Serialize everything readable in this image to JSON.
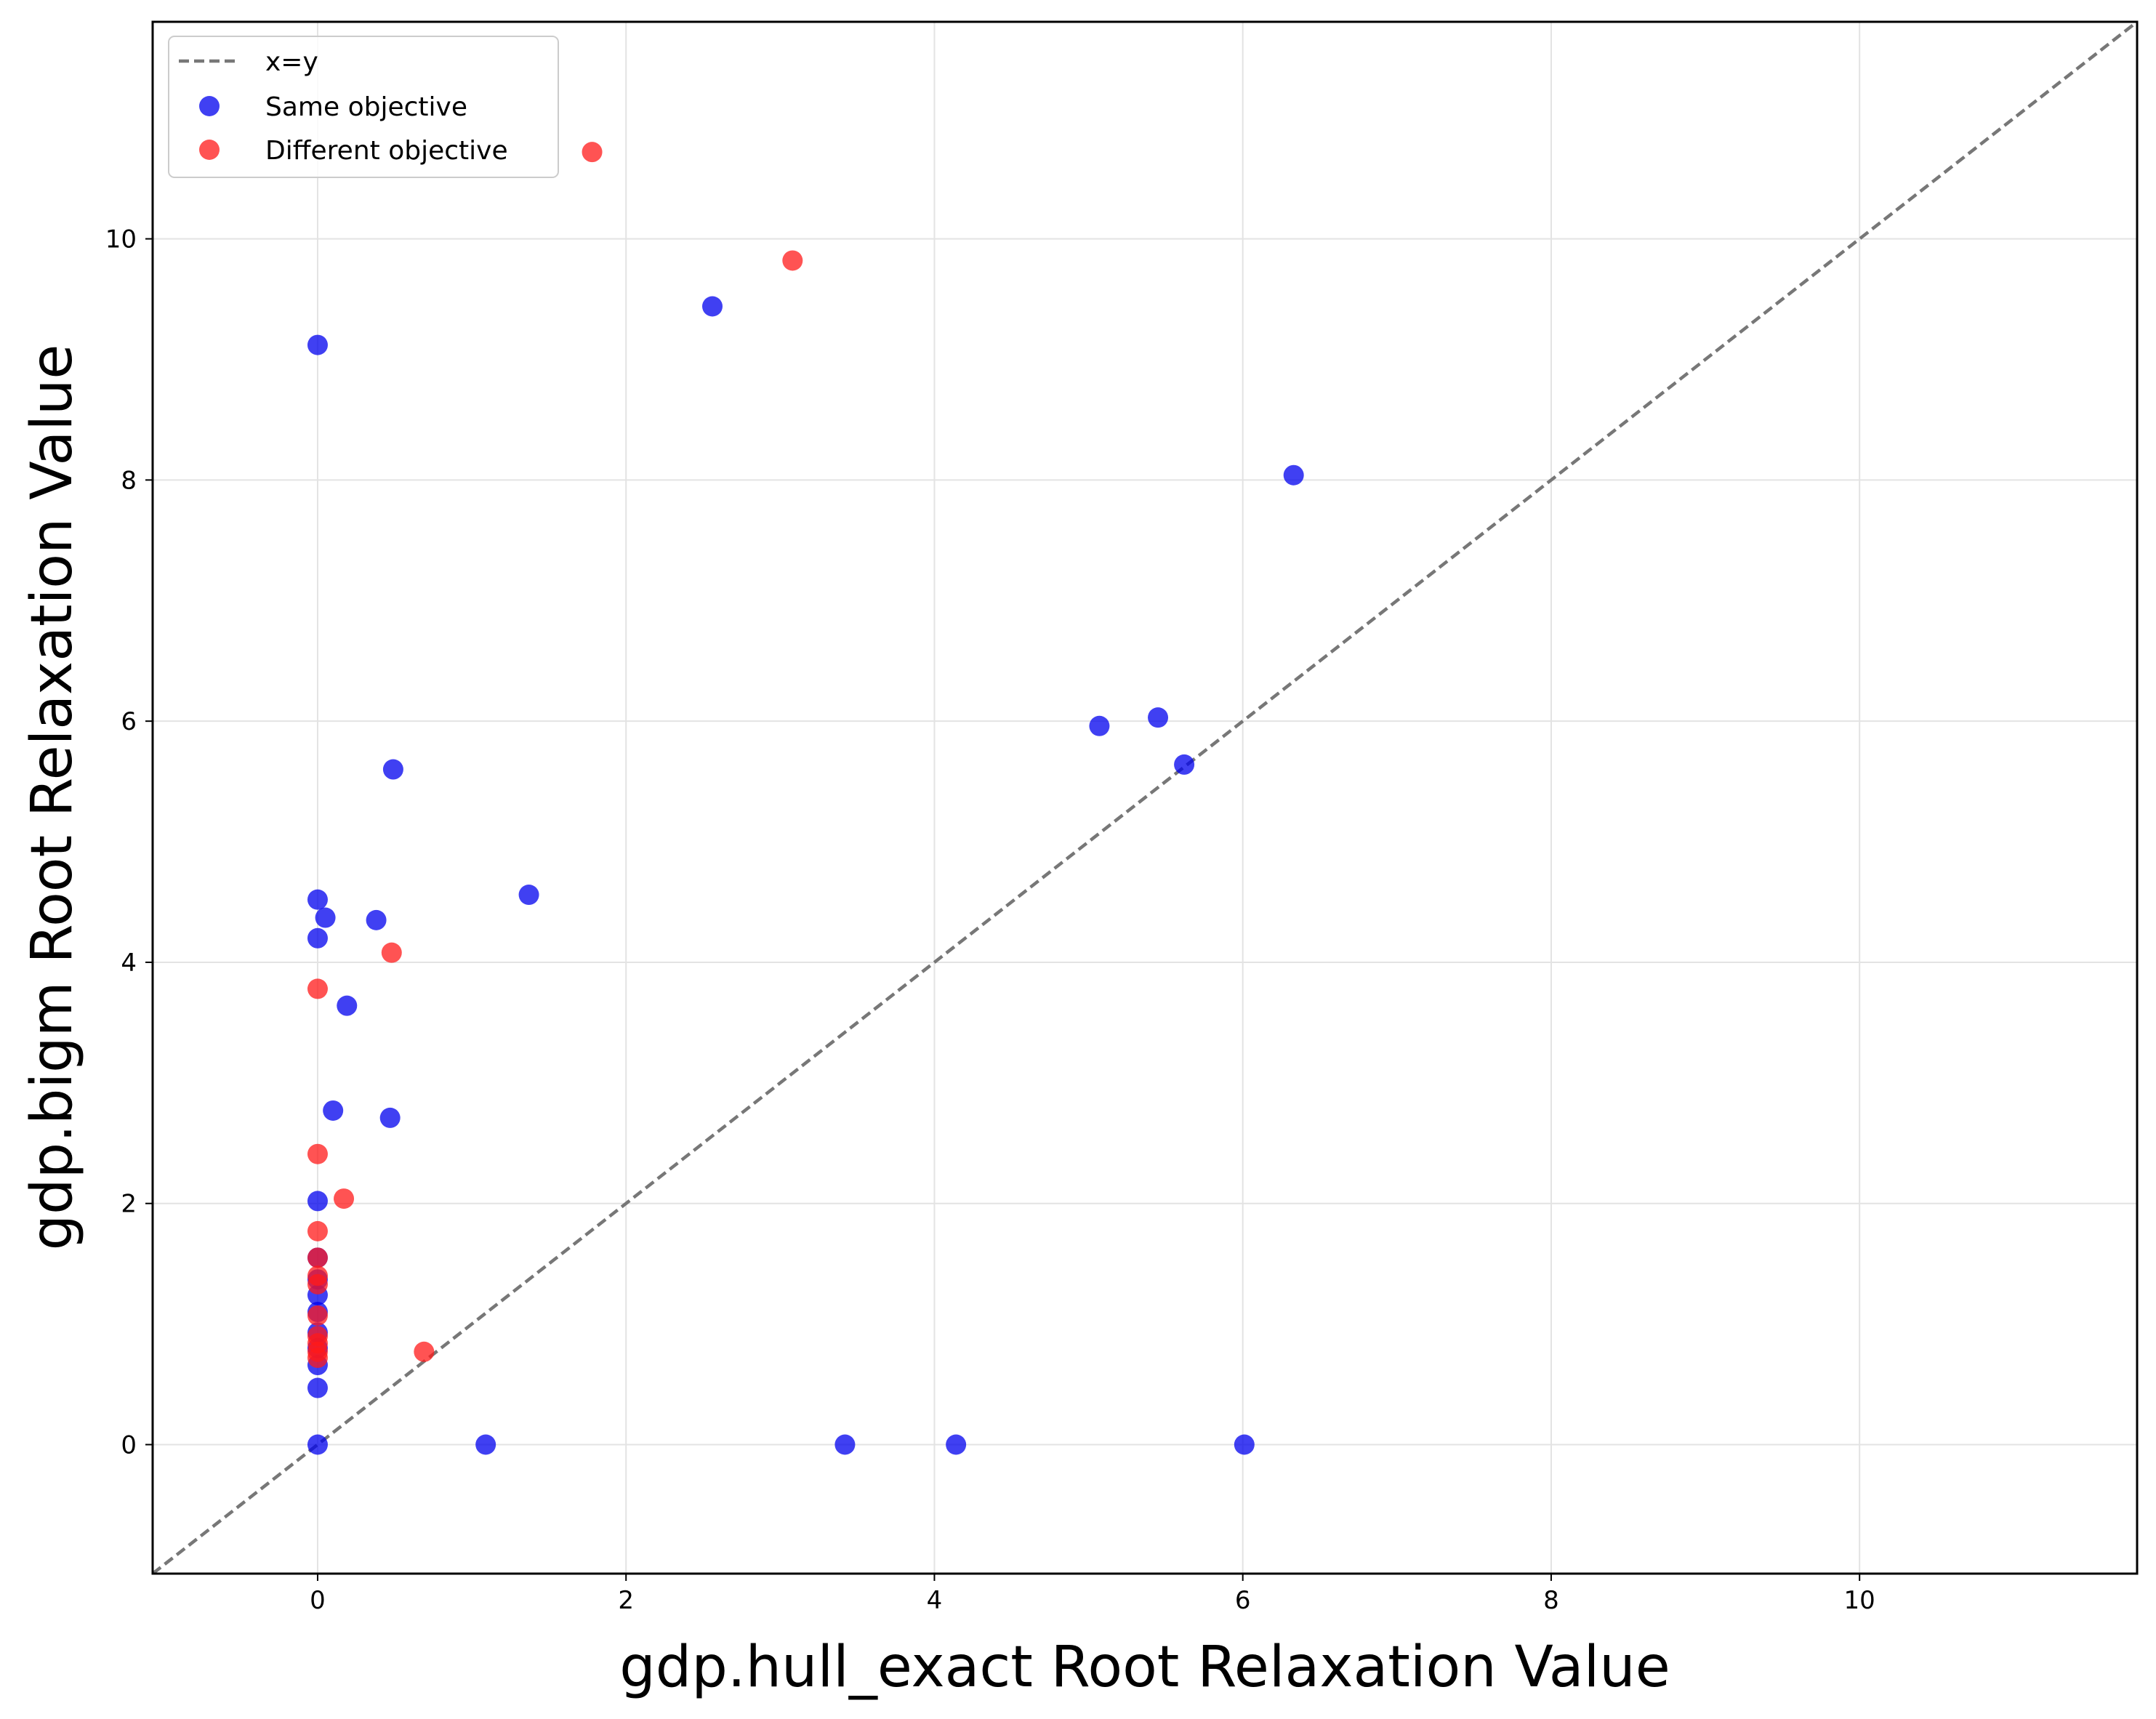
{
  "chart_data": {
    "type": "scatter",
    "xlabel": "gdp.hull_exact Root Relaxation Value",
    "ylabel": "gdp.bigm Root Relaxation Value",
    "xlim": [
      -1.07,
      11.8
    ],
    "ylim": [
      -1.07,
      11.8
    ],
    "xticks": [
      0,
      2,
      4,
      6,
      8,
      10
    ],
    "yticks": [
      0,
      2,
      4,
      6,
      8,
      10
    ],
    "grid": true,
    "legend_position": "top-left",
    "reference_line": {
      "name": "x=y",
      "style": "dashed",
      "color": "#777777"
    },
    "series": [
      {
        "name": "Same objective",
        "color": "#0000ee",
        "points": [
          [
            0,
            9.12
          ],
          [
            2.56,
            9.44
          ],
          [
            6.33,
            8.04
          ],
          [
            5.07,
            5.96
          ],
          [
            5.45,
            6.03
          ],
          [
            5.62,
            5.64
          ],
          [
            0.49,
            5.6
          ],
          [
            0,
            4.52
          ],
          [
            0.05,
            4.37
          ],
          [
            0.38,
            4.35
          ],
          [
            1.37,
            4.56
          ],
          [
            0,
            4.2
          ],
          [
            0.19,
            3.64
          ],
          [
            0.1,
            2.77
          ],
          [
            0.47,
            2.71
          ],
          [
            0,
            2.02
          ],
          [
            0,
            1.55
          ],
          [
            0,
            1.37
          ],
          [
            0,
            1.24
          ],
          [
            0,
            1.1
          ],
          [
            0,
            0.93
          ],
          [
            0,
            0.8
          ],
          [
            0,
            0.66
          ],
          [
            0,
            0.47
          ],
          [
            0,
            0
          ],
          [
            1.09,
            0
          ],
          [
            3.42,
            0
          ],
          [
            4.14,
            0
          ],
          [
            6.01,
            0
          ]
        ]
      },
      {
        "name": "Different objective",
        "color": "#ff1a1a",
        "points": [
          [
            1.78,
            10.72
          ],
          [
            3.08,
            9.82
          ],
          [
            0.48,
            4.08
          ],
          [
            0,
            3.78
          ],
          [
            0,
            2.41
          ],
          [
            0.17,
            2.04
          ],
          [
            0,
            1.77
          ],
          [
            0,
            1.55
          ],
          [
            0,
            1.4
          ],
          [
            0,
            1.33
          ],
          [
            0,
            1.07
          ],
          [
            0,
            0.9
          ],
          [
            0,
            0.84
          ],
          [
            0,
            0.77
          ],
          [
            0,
            0.72
          ],
          [
            0.69,
            0.77
          ]
        ]
      }
    ]
  }
}
